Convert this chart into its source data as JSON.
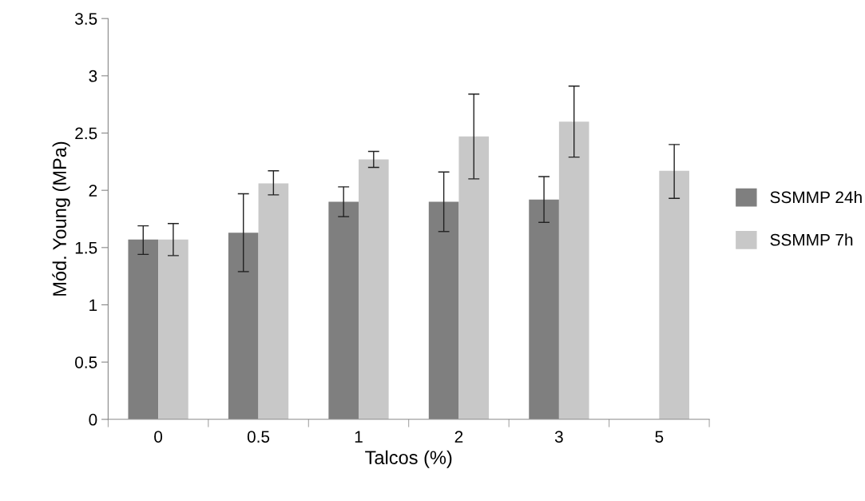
{
  "chart_data": {
    "type": "bar",
    "xlabel": "Talcos (%)",
    "ylabel": "Mód. Young (MPa)",
    "categories": [
      "0",
      "0.5",
      "1",
      "2",
      "3",
      "5"
    ],
    "series": [
      {
        "name": "SSMMP 24h",
        "color": "#7f7f7f",
        "values": [
          1.57,
          1.63,
          1.9,
          1.9,
          1.92,
          null
        ],
        "errors": [
          [
            1.44,
            1.69
          ],
          [
            1.29,
            1.97
          ],
          [
            1.77,
            2.03
          ],
          [
            1.64,
            2.16
          ],
          [
            1.72,
            2.12
          ],
          null
        ]
      },
      {
        "name": "SSMMP 7h",
        "color": "#c8c8c8",
        "values": [
          1.57,
          2.06,
          2.27,
          2.47,
          2.6,
          2.17
        ],
        "errors": [
          [
            1.43,
            1.71
          ],
          [
            1.96,
            2.17
          ],
          [
            2.2,
            2.34
          ],
          [
            2.1,
            2.84
          ],
          [
            2.29,
            2.91
          ],
          [
            1.93,
            2.4
          ]
        ]
      }
    ],
    "ylim": [
      0,
      3.5
    ],
    "yticks": [
      0,
      0.5,
      1,
      1.5,
      2,
      2.5,
      3,
      3.5
    ],
    "grid": false,
    "legend": "right"
  }
}
